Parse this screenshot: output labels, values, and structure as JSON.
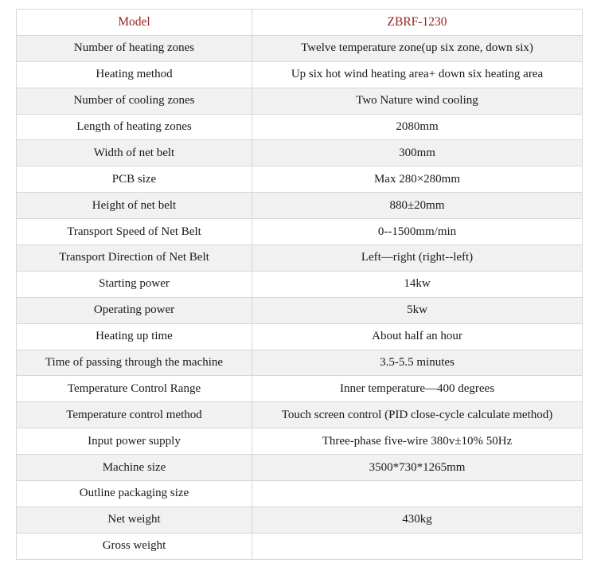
{
  "table": {
    "header": {
      "label": "Model",
      "value": "ZBRF-1230"
    },
    "rows": [
      {
        "label": "Number of heating zones",
        "value": "Twelve temperature zone(up six zone, down six)"
      },
      {
        "label": "Heating method",
        "value": "Up six hot wind heating area+ down six heating area"
      },
      {
        "label": "Number of cooling zones",
        "value": "Two Nature wind cooling"
      },
      {
        "label": "Length of heating zones",
        "value": "2080mm"
      },
      {
        "label": "Width of net belt",
        "value": "300mm"
      },
      {
        "label": "PCB size",
        "value": "Max 280×280mm"
      },
      {
        "label": "Height of net belt",
        "value": "880±20mm"
      },
      {
        "label": "Transport Speed of Net Belt",
        "value": "0--1500mm/min"
      },
      {
        "label": "Transport Direction of Net Belt",
        "value": "Left—right (right--left)"
      },
      {
        "label": "Starting power",
        "value": "14kw"
      },
      {
        "label": "Operating power",
        "value": "5kw"
      },
      {
        "label": "Heating up time",
        "value": "About half an hour"
      },
      {
        "label": "Time of passing through the machine",
        "value": "3.5-5.5 minutes"
      },
      {
        "label": "Temperature Control Range",
        "value": "Inner temperature—400 degrees"
      },
      {
        "label": "Temperature control method",
        "value": "Touch screen control (PID close-cycle calculate method)"
      },
      {
        "label": "Input power supply",
        "value": "Three-phase five-wire 380v±10% 50Hz"
      },
      {
        "label": "Machine size",
        "value": "3500*730*1265mm"
      },
      {
        "label": "Outline packaging size",
        "value": ""
      },
      {
        "label": "Net weight",
        "value": "430kg"
      },
      {
        "label": "Gross weight",
        "value": ""
      }
    ]
  },
  "colors": {
    "header_text": "#9b1c1c",
    "body_text": "#1a1a1a",
    "row_alt_background": "#f1f1f1",
    "border": "#d7d7d7"
  }
}
